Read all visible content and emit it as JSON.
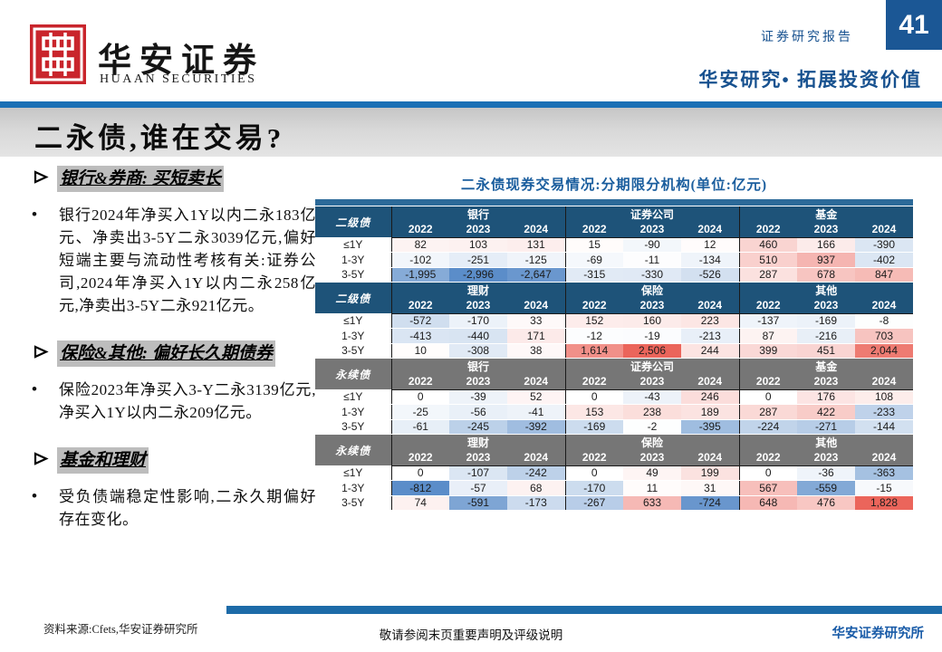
{
  "header": {
    "logo_cn": "华安证券",
    "logo_en": "HUAAN SECURITIES",
    "report_type": "证券研究报告",
    "page_number": "41",
    "slogan": "华安研究• 拓展投资价值"
  },
  "title": "二永债,谁在交易?",
  "sections": [
    {
      "heading": "银行&券商: 买短卖长",
      "bullets": [
        "银行2024年净买入1Y以内二永183亿元、净卖出3-5Y二永3039亿元,偏好短端主要与流动性考核有关:证券公司,2024年净买入1Y以内二永258亿元,净卖出3-5Y二永921亿元。"
      ]
    },
    {
      "heading": "保险&其他: 偏好长久期债券",
      "bullets": [
        "保险2023年净买入3-Y二永3139亿元,净买入1Y以内二永209亿元。"
      ]
    },
    {
      "heading": "基金和理财",
      "bullets": [
        "受负债端稳定性影响,二永久期偏好存在变化。"
      ]
    }
  ],
  "chart_data": {
    "type": "table",
    "title": "二永债现券交易情况:分期限分机构(单位:亿元)",
    "unit": "亿元",
    "years": [
      "2022",
      "2023",
      "2024"
    ],
    "tenors": [
      "≤1Y",
      "1-3Y",
      "3-5Y"
    ],
    "heat_colors": {
      "positive": "#eb655b",
      "negative": "#5b8dc9",
      "zero": "#ffffff"
    },
    "blocks": [
      {
        "bond_type": "二级债",
        "theme": "blue",
        "groups": [
          {
            "name": "银行",
            "rows": [
              [
                82,
                103,
                131
              ],
              [
                -102,
                -251,
                -125
              ],
              [
                -1995,
                -2996,
                -2647
              ]
            ]
          },
          {
            "name": "证券公司",
            "rows": [
              [
                15,
                -90,
                12
              ],
              [
                -69,
                -11,
                -134
              ],
              [
                -315,
                -330,
                -526
              ]
            ]
          },
          {
            "name": "基金",
            "rows": [
              [
                460,
                166,
                -390
              ],
              [
                510,
                937,
                -402
              ],
              [
                287,
                678,
                847
              ]
            ]
          }
        ]
      },
      {
        "bond_type": "二级债",
        "theme": "blue",
        "groups": [
          {
            "name": "理财",
            "rows": [
              [
                -572,
                -170,
                33
              ],
              [
                -413,
                -440,
                171
              ],
              [
                10,
                -308,
                38
              ]
            ]
          },
          {
            "name": "保险",
            "rows": [
              [
                152,
                160,
                223
              ],
              [
                -12,
                -19,
                -213
              ],
              [
                1614,
                2506,
                244
              ]
            ]
          },
          {
            "name": "其他",
            "rows": [
              [
                -137,
                -169,
                -8
              ],
              [
                87,
                -216,
                703
              ],
              [
                399,
                451,
                2044
              ]
            ]
          }
        ]
      },
      {
        "bond_type": "永续债",
        "theme": "gray",
        "groups": [
          {
            "name": "银行",
            "rows": [
              [
                0,
                -39,
                52
              ],
              [
                -25,
                -56,
                -41
              ],
              [
                -61,
                -245,
                -392
              ]
            ]
          },
          {
            "name": "证券公司",
            "rows": [
              [
                0,
                -43,
                246
              ],
              [
                153,
                238,
                189
              ],
              [
                -169,
                -2,
                -395
              ]
            ]
          },
          {
            "name": "基金",
            "rows": [
              [
                0,
                176,
                108
              ],
              [
                287,
                422,
                -233
              ],
              [
                -224,
                -271,
                -144
              ]
            ]
          }
        ]
      },
      {
        "bond_type": "永续债",
        "theme": "gray",
        "groups": [
          {
            "name": "理财",
            "rows": [
              [
                0,
                -107,
                -242
              ],
              [
                -812,
                -57,
                68
              ],
              [
                74,
                -591,
                -173
              ]
            ]
          },
          {
            "name": "保险",
            "rows": [
              [
                0,
                49,
                199
              ],
              [
                -170,
                11,
                31
              ],
              [
                -267,
                633,
                -724
              ]
            ]
          },
          {
            "name": "其他",
            "rows": [
              [
                0,
                -36,
                -363
              ],
              [
                567,
                -559,
                -15
              ],
              [
                648,
                476,
                1828
              ]
            ]
          }
        ]
      }
    ]
  },
  "footer": {
    "source": "资料来源:Cfets,华安证券研究所",
    "disclaimer": "敬请参阅末页重要声明及评级说明",
    "institute": "华安证券研究所"
  }
}
